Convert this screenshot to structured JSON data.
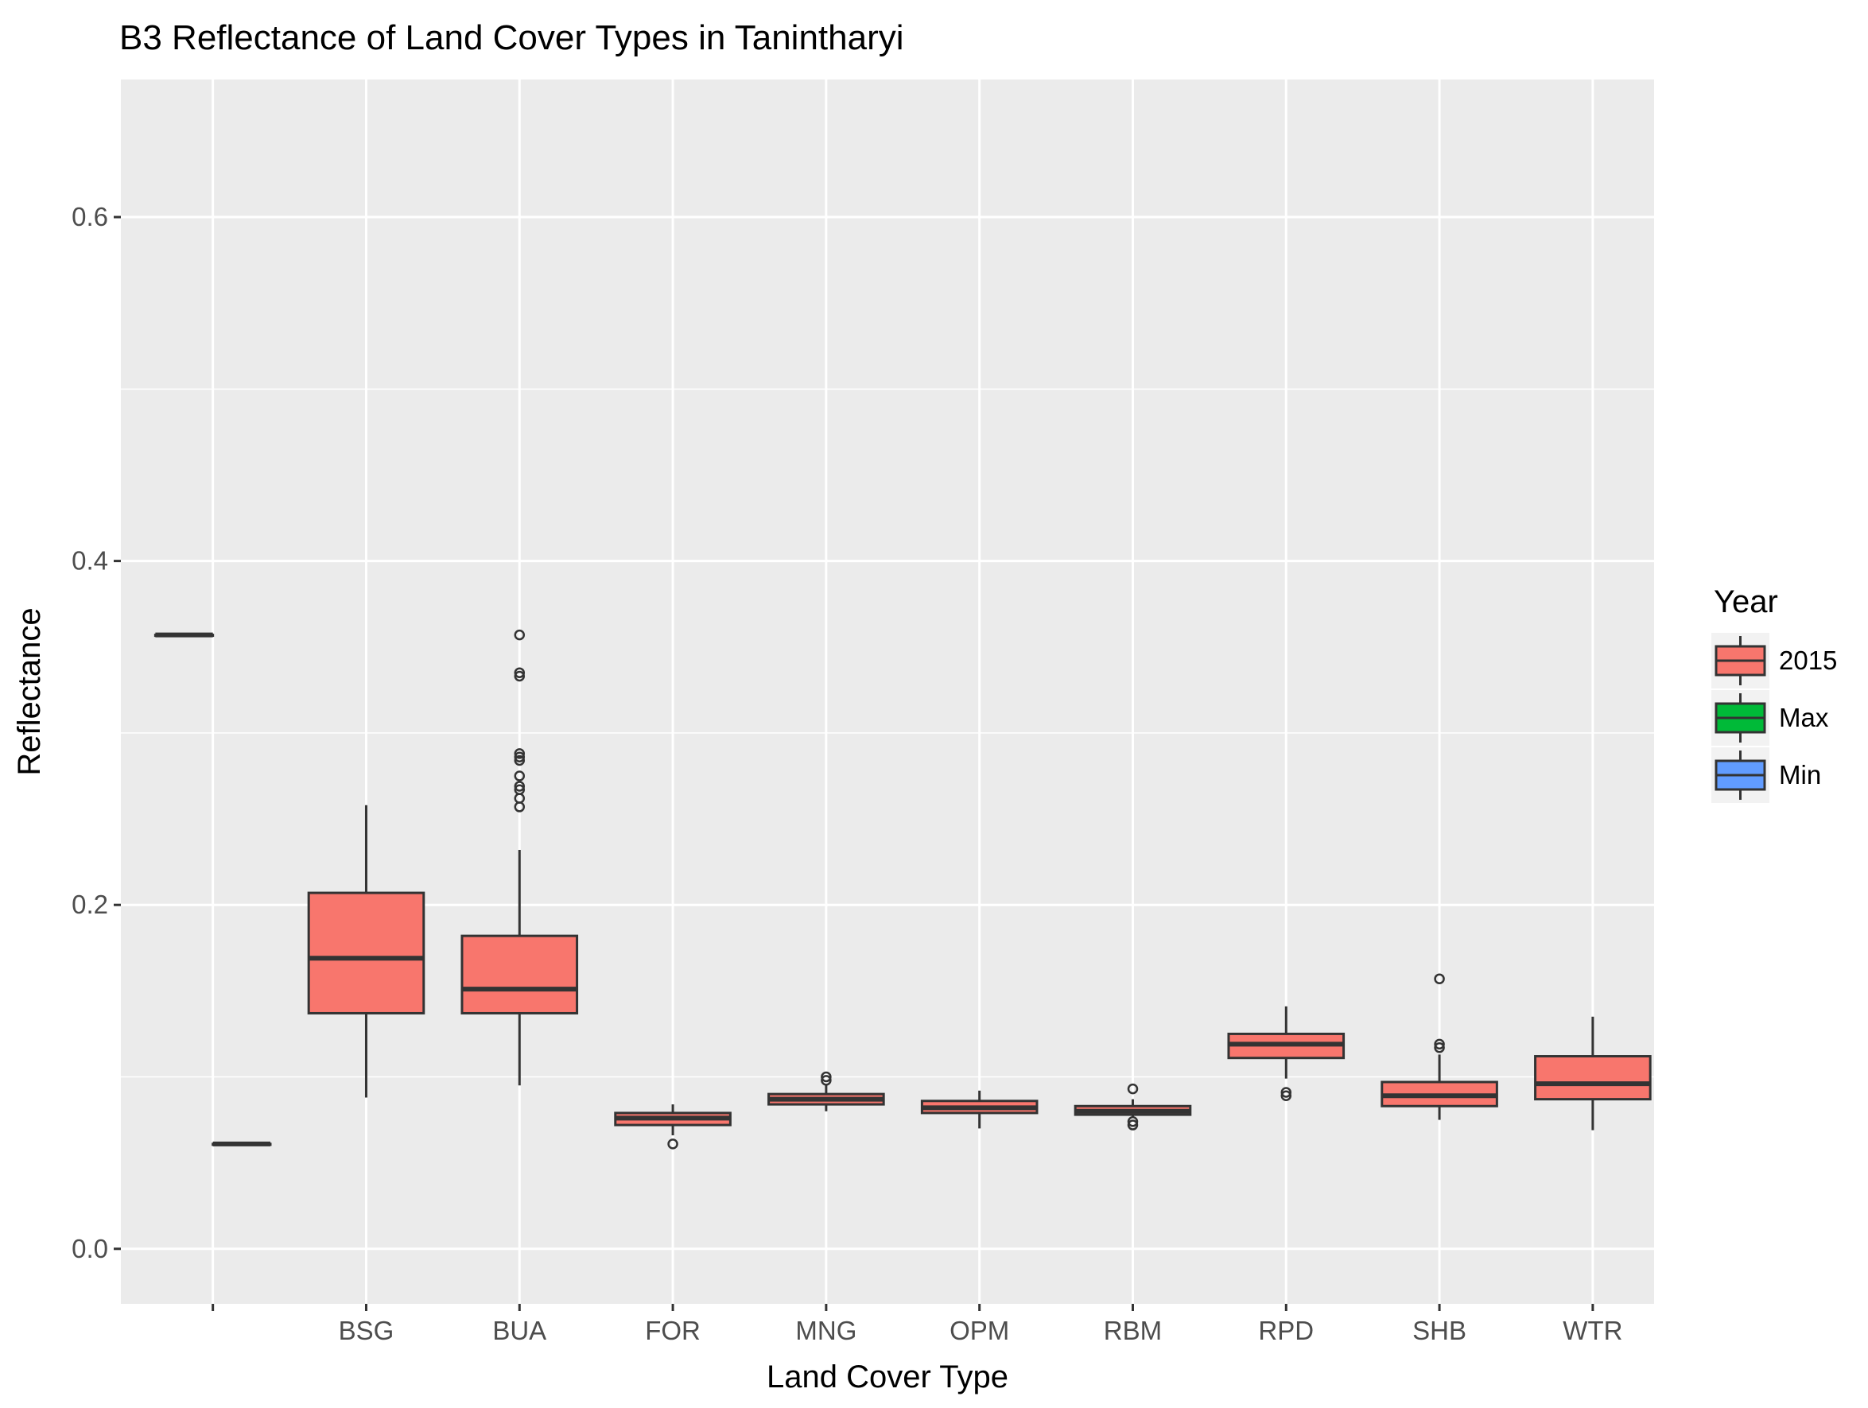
{
  "chart_data": {
    "type": "box",
    "title": "B3 Reflectance of Land Cover Types in Tanintharyi",
    "xlabel": "Land Cover Type",
    "ylabel": "Reflectance",
    "ylim": [
      -0.032,
      0.68
    ],
    "y_ticks": [
      0.0,
      0.2,
      0.4,
      0.6
    ],
    "y_tick_labels": [
      "0.0",
      "0.2",
      "0.4",
      "0.6"
    ],
    "grid": true,
    "categories": [
      "",
      "BSG",
      "BUA",
      "FOR",
      "MNG",
      "OPM",
      "RBM",
      "RPD",
      "SHB",
      "WTR"
    ],
    "legend": {
      "title": "Year",
      "position": "right",
      "entries": [
        {
          "label": "2015",
          "color": "#F8766D"
        },
        {
          "label": "Max",
          "color": "#00BA38"
        },
        {
          "label": "Min",
          "color": "#619CFF"
        }
      ]
    },
    "boxes": [
      {
        "category": "",
        "series": "Max",
        "offset": -1,
        "color": "#00BA38",
        "whisker_low": 0.357,
        "q1": 0.357,
        "median": 0.357,
        "q3": 0.357,
        "whisker_high": 0.357,
        "outliers": []
      },
      {
        "category": "",
        "series": "Min",
        "offset": 1,
        "color": "#619CFF",
        "whisker_low": 0.061,
        "q1": 0.061,
        "median": 0.061,
        "q3": 0.061,
        "whisker_high": 0.061,
        "outliers": []
      },
      {
        "category": "BSG",
        "series": "2015",
        "offset": 0,
        "color": "#F8766D",
        "whisker_low": 0.088,
        "q1": 0.137,
        "median": 0.169,
        "q3": 0.207,
        "whisker_high": 0.258,
        "outliers": []
      },
      {
        "category": "BUA",
        "series": "2015",
        "offset": 0,
        "color": "#F8766D",
        "whisker_low": 0.095,
        "q1": 0.137,
        "median": 0.151,
        "q3": 0.182,
        "whisker_high": 0.232,
        "outliers": [
          0.257,
          0.262,
          0.267,
          0.269,
          0.275,
          0.284,
          0.286,
          0.288,
          0.333,
          0.335,
          0.357
        ]
      },
      {
        "category": "FOR",
        "series": "2015",
        "offset": 0,
        "color": "#F8766D",
        "whisker_low": 0.066,
        "q1": 0.072,
        "median": 0.076,
        "q3": 0.079,
        "whisker_high": 0.084,
        "outliers": [
          0.061
        ]
      },
      {
        "category": "MNG",
        "series": "2015",
        "offset": 0,
        "color": "#F8766D",
        "whisker_low": 0.08,
        "q1": 0.084,
        "median": 0.087,
        "q3": 0.09,
        "whisker_high": 0.095,
        "outliers": [
          0.098,
          0.1
        ]
      },
      {
        "category": "OPM",
        "series": "2015",
        "offset": 0,
        "color": "#F8766D",
        "whisker_low": 0.07,
        "q1": 0.079,
        "median": 0.082,
        "q3": 0.086,
        "whisker_high": 0.092,
        "outliers": []
      },
      {
        "category": "RBM",
        "series": "2015",
        "offset": 0,
        "color": "#F8766D",
        "whisker_low": 0.076,
        "q1": 0.078,
        "median": 0.08,
        "q3": 0.083,
        "whisker_high": 0.087,
        "outliers": [
          0.072,
          0.074,
          0.093
        ]
      },
      {
        "category": "RPD",
        "series": "2015",
        "offset": 0,
        "color": "#F8766D",
        "whisker_low": 0.099,
        "q1": 0.111,
        "median": 0.119,
        "q3": 0.125,
        "whisker_high": 0.141,
        "outliers": [
          0.089,
          0.091
        ]
      },
      {
        "category": "SHB",
        "series": "2015",
        "offset": 0,
        "color": "#F8766D",
        "whisker_low": 0.075,
        "q1": 0.083,
        "median": 0.089,
        "q3": 0.097,
        "whisker_high": 0.113,
        "outliers": [
          0.117,
          0.119,
          0.157
        ]
      },
      {
        "category": "WTR",
        "series": "2015",
        "offset": 0,
        "color": "#F8766D",
        "whisker_low": 0.069,
        "q1": 0.087,
        "median": 0.096,
        "q3": 0.112,
        "whisker_high": 0.135,
        "outliers": []
      }
    ]
  }
}
